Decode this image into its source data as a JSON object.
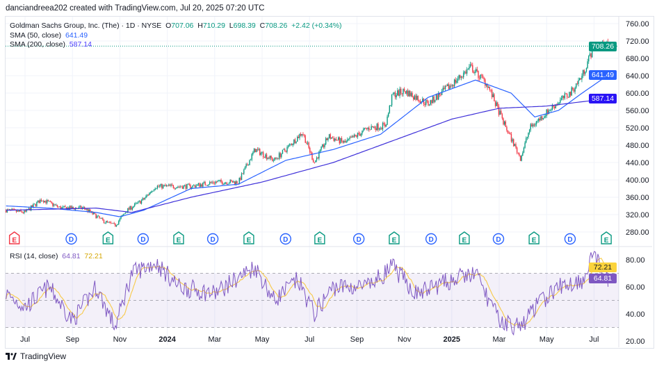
{
  "caption": "danciandreea202 created with TradingView.com, Jul 20, 2025 07:20 UTC",
  "legend": {
    "symbol": "Goldman Sachs Group, Inc. (The) · 1D · NYSE",
    "o_label": "O",
    "o": "707.06",
    "h_label": "H",
    "h": "710.29",
    "l_label": "L",
    "l": "698.39",
    "c_label": "C",
    "c": "708.26",
    "change": "+2.42 (+0.34%)",
    "sma50_label": "SMA (50, close)",
    "sma50": "641.49",
    "sma200_label": "SMA (200, close)",
    "sma200": "587.14",
    "rsi_label": "RSI (14, close)",
    "rsi": "64.81",
    "rsi_ma": "72.21"
  },
  "tags": {
    "price": "708.26",
    "sma50": "641.49",
    "sma200": "587.14",
    "rsi_ma": "72.21",
    "rsi": "64.81"
  },
  "colors": {
    "up": "#089981",
    "down": "#f23645",
    "sma50": "#2962ff",
    "sma200": "#3d2fd9",
    "rsi": "#7e57c2",
    "rsi_ma": "#f7c948"
  },
  "footer": "TradingView",
  "chart_data": {
    "type": "candlestick",
    "x_ticks": [
      "Jul",
      "Sep",
      "Nov",
      "2024",
      "Mar",
      "May",
      "Jul",
      "Sep",
      "Nov",
      "2025",
      "Mar",
      "May",
      "Jul"
    ],
    "x_tick_months": [
      0,
      2,
      4,
      6,
      8,
      10,
      12,
      14,
      16,
      18,
      20,
      22,
      24
    ],
    "price_ticks": [
      "760.00",
      "720.00",
      "680.00",
      "640.00",
      "600.00",
      "560.00",
      "520.00",
      "480.00",
      "440.00",
      "400.00",
      "360.00",
      "320.00",
      "280.00"
    ],
    "price_range": [
      260,
      760
    ],
    "price_path": [
      [
        -0.8,
        330
      ],
      [
        0,
        325
      ],
      [
        0.7,
        355
      ],
      [
        1.5,
        335
      ],
      [
        2.5,
        335
      ],
      [
        3.3,
        305
      ],
      [
        3.8,
        295
      ],
      [
        4.3,
        330
      ],
      [
        5,
        355
      ],
      [
        5.5,
        385
      ],
      [
        6,
        385
      ],
      [
        7,
        385
      ],
      [
        8,
        395
      ],
      [
        9,
        395
      ],
      [
        9.7,
        470
      ],
      [
        10.5,
        445
      ],
      [
        11,
        470
      ],
      [
        11.7,
        510
      ],
      [
        12.2,
        440
      ],
      [
        12.8,
        500
      ],
      [
        13.5,
        485
      ],
      [
        14.5,
        520
      ],
      [
        15.2,
        525
      ],
      [
        15.5,
        595
      ],
      [
        16,
        605
      ],
      [
        17,
        575
      ],
      [
        18,
        620
      ],
      [
        18.8,
        660
      ],
      [
        19.5,
        620
      ],
      [
        20.2,
        530
      ],
      [
        20.9,
        450
      ],
      [
        21.3,
        520
      ],
      [
        22,
        555
      ],
      [
        22.5,
        580
      ],
      [
        23,
        600
      ],
      [
        23.5,
        640
      ],
      [
        24,
        710
      ],
      [
        24.6,
        708.26
      ]
    ],
    "sma50": [
      [
        -0.8,
        340
      ],
      [
        1,
        335
      ],
      [
        3,
        325
      ],
      [
        4,
        315
      ],
      [
        5,
        330
      ],
      [
        7,
        380
      ],
      [
        9,
        390
      ],
      [
        11,
        445
      ],
      [
        13,
        470
      ],
      [
        15,
        505
      ],
      [
        17,
        590
      ],
      [
        19,
        630
      ],
      [
        20.5,
        600
      ],
      [
        21.5,
        545
      ],
      [
        22.5,
        560
      ],
      [
        23.5,
        600
      ],
      [
        24.6,
        641.49
      ]
    ],
    "sma200": [
      [
        -0.8,
        330
      ],
      [
        3,
        335
      ],
      [
        4.5,
        325
      ],
      [
        7,
        360
      ],
      [
        10,
        395
      ],
      [
        13,
        440
      ],
      [
        16,
        500
      ],
      [
        18,
        540
      ],
      [
        20,
        565
      ],
      [
        22,
        570
      ],
      [
        23.5,
        580
      ],
      [
        24.6,
        587.14
      ]
    ],
    "rsi_ticks": [
      "80.00",
      "60.00",
      "40.00",
      "20.00"
    ],
    "rsi_range": [
      15,
      90
    ],
    "rsi_bands": [
      70,
      50,
      30
    ],
    "rsi": [
      [
        -0.8,
        55
      ],
      [
        0,
        45
      ],
      [
        1,
        60
      ],
      [
        2,
        35
      ],
      [
        3,
        60
      ],
      [
        3.8,
        30
      ],
      [
        4.5,
        70
      ],
      [
        5.5,
        78
      ],
      [
        6.5,
        60
      ],
      [
        8,
        55
      ],
      [
        9.7,
        75
      ],
      [
        10.5,
        50
      ],
      [
        11.5,
        65
      ],
      [
        12.2,
        40
      ],
      [
        13,
        60
      ],
      [
        14.5,
        60
      ],
      [
        15.5,
        75
      ],
      [
        16.5,
        55
      ],
      [
        18,
        65
      ],
      [
        19,
        70
      ],
      [
        20,
        35
      ],
      [
        20.9,
        30
      ],
      [
        21.5,
        45
      ],
      [
        22.5,
        60
      ],
      [
        23.5,
        65
      ],
      [
        24,
        86
      ],
      [
        24.4,
        66
      ],
      [
        24.6,
        64.81
      ]
    ],
    "events": [
      [
        "E",
        -0.45,
        "red"
      ],
      [
        "D",
        1.95
      ],
      [
        "E",
        3.5
      ],
      [
        "D",
        4.98
      ],
      [
        "E",
        6.48
      ],
      [
        "D",
        7.92
      ],
      [
        "E",
        9.44
      ],
      [
        "D",
        10.99
      ],
      [
        "E",
        12.43
      ],
      [
        "D",
        14.08
      ],
      [
        "E",
        15.57
      ],
      [
        "D",
        17.13
      ],
      [
        "E",
        18.53
      ],
      [
        "D",
        19.97
      ],
      [
        "E",
        21.47
      ],
      [
        "D",
        22.99
      ],
      [
        "E",
        24.52
      ]
    ]
  }
}
